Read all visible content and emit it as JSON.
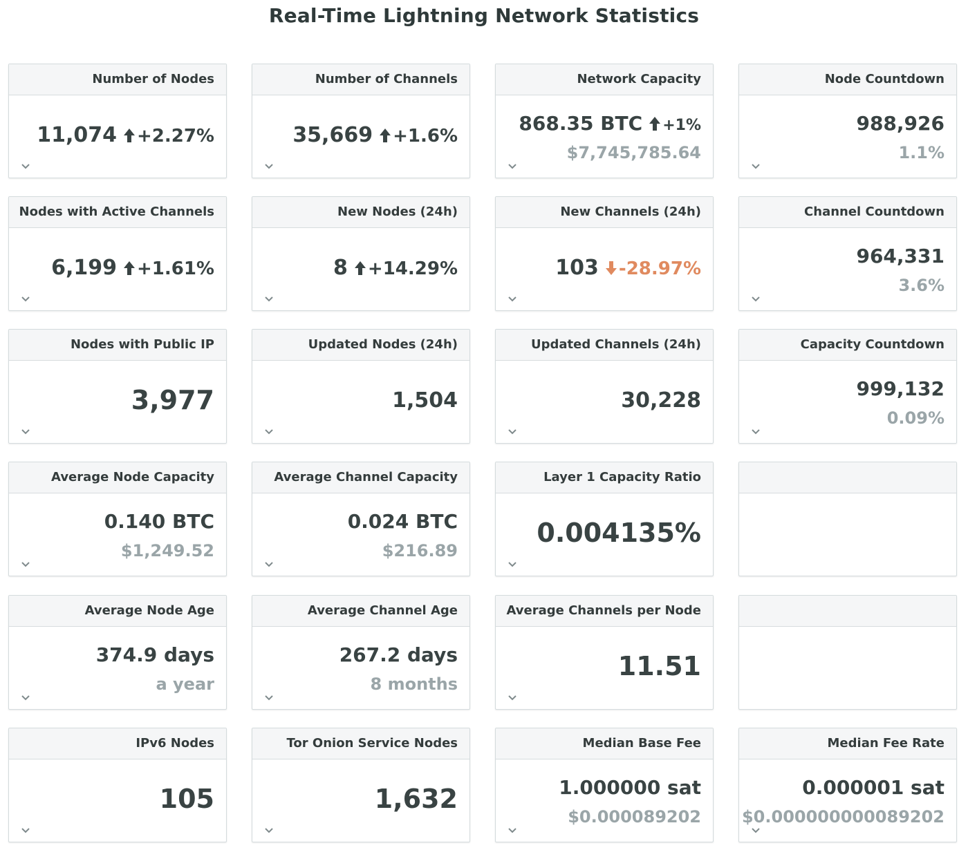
{
  "title": "Real-Time Lightning Network Statistics",
  "colors": {
    "up": "#394343",
    "down": "#e08a5f",
    "muted": "#9aa5a8"
  },
  "cards": [
    {
      "title": "Number of Nodes",
      "value": "11,074",
      "change": "+2.27%",
      "dir": "up"
    },
    {
      "title": "Number of Channels",
      "value": "35,669",
      "change": "+1.6%",
      "dir": "up"
    },
    {
      "title": "Network Capacity",
      "value": "868.35 BTC",
      "change": "+1%",
      "dir": "up",
      "sub": "$7,745,785.64"
    },
    {
      "title": "Node Countdown",
      "value": "988,926",
      "sub": "1.1%"
    },
    {
      "title": "Nodes with Active Channels",
      "value": "6,199",
      "change": "+1.61%",
      "dir": "up"
    },
    {
      "title": "New Nodes (24h)",
      "value": "8",
      "change": "+14.29%",
      "dir": "up"
    },
    {
      "title": "New Channels (24h)",
      "value": "103",
      "change": "-28.97%",
      "dir": "down"
    },
    {
      "title": "Channel Countdown",
      "value": "964,331",
      "sub": "3.6%"
    },
    {
      "title": "Nodes with Public IP",
      "value": "3,977",
      "big": true
    },
    {
      "title": "Updated Nodes (24h)",
      "value": "1,504"
    },
    {
      "title": "Updated Channels (24h)",
      "value": "30,228"
    },
    {
      "title": "Capacity Countdown",
      "value": "999,132",
      "sub": "0.09%"
    },
    {
      "title": "Average Node Capacity",
      "value": "0.140 BTC",
      "sub": "$1,249.52"
    },
    {
      "title": "Average Channel Capacity",
      "value": "0.024 BTC",
      "sub": "$216.89"
    },
    {
      "title": "Layer 1 Capacity Ratio",
      "value": "0.004135%",
      "big": true
    },
    {
      "title": "",
      "empty": true
    },
    {
      "title": "Average Node Age",
      "value": "374.9 days",
      "sub": "a year"
    },
    {
      "title": "Average Channel Age",
      "value": "267.2 days",
      "sub": "8 months"
    },
    {
      "title": "Average Channels per Node",
      "value": "11.51",
      "big": true
    },
    {
      "title": "",
      "empty": true
    },
    {
      "title": "IPv6 Nodes",
      "value": "105",
      "big": true
    },
    {
      "title": "Tor Onion Service Nodes",
      "value": "1,632",
      "big": true
    },
    {
      "title": "Median Base Fee",
      "value": "1.000000 sat",
      "sub": "$0.000089202"
    },
    {
      "title": "Median Fee Rate",
      "value": "0.000001 sat",
      "sub": "$0.000000000089202"
    }
  ]
}
